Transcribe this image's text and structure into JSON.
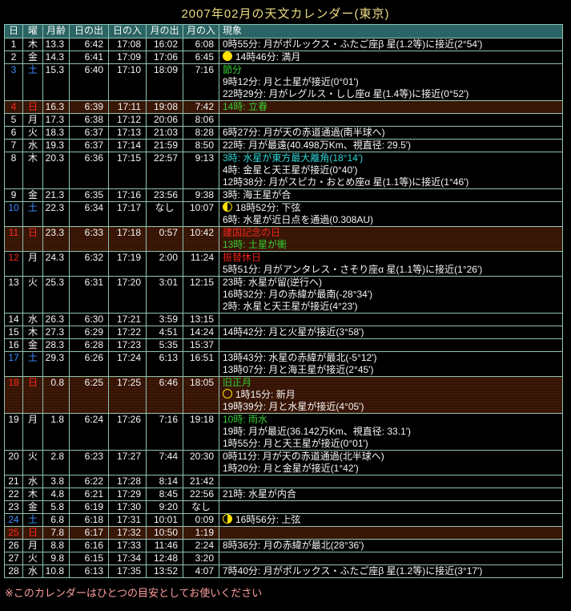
{
  "page": {
    "title": "2007年02月の天文カレンダー(東京)",
    "footer_note": "※このカレンダーはひとつの目安としてお使いください"
  },
  "colors": {
    "background": "#000000",
    "title_text": "#EDDC82",
    "footer_text": "#FF9E9E",
    "grid_border": "#8FC2B2",
    "header_bg": "#2E6666",
    "body_text": "#F5F5F5",
    "saturday_text": "#3E8DFF",
    "sunday_holiday_text": "#FF2A1F",
    "sunday_row_bg": "#3A1505",
    "seasonal_event_green": "#35CC35",
    "mercury_event_cyan": "#2FD5D5",
    "holiday_event_red": "#F02218",
    "moon_icon_yellow": "#FFE000"
  },
  "table": {
    "columns": [
      "日",
      "曜",
      "月齢",
      "日の出",
      "日の入",
      "月の出",
      "月の入",
      "現象"
    ],
    "rows": [
      {
        "day": "1",
        "weekday": "木",
        "moon_age": "13.3",
        "sunrise": "6:42",
        "sunset": "17:08",
        "moonrise": "16:02",
        "moonset": "6:08",
        "num_color": null,
        "wd_color": null,
        "row_bg": null,
        "events": [
          {
            "text": "0時55分: 月がポルックス・ふたご座β 星(1.2等)に接近(2°54')",
            "color": "white",
            "icon": null
          }
        ]
      },
      {
        "day": "2",
        "weekday": "金",
        "moon_age": "14.3",
        "sunrise": "6:41",
        "sunset": "17:09",
        "moonrise": "17:06",
        "moonset": "6:45",
        "num_color": null,
        "wd_color": null,
        "row_bg": null,
        "events": [
          {
            "text": "14時46分: 満月",
            "color": "white",
            "icon": "full-moon"
          }
        ]
      },
      {
        "day": "3",
        "weekday": "土",
        "moon_age": "15.3",
        "sunrise": "6:40",
        "sunset": "17:10",
        "moonrise": "18:09",
        "moonset": "7:16",
        "num_color": "blue",
        "wd_color": "blue",
        "row_bg": null,
        "events": [
          {
            "text": "節分",
            "color": "green",
            "icon": null
          },
          {
            "text": "9時12分: 月と土星が接近(0°01')",
            "color": "white",
            "icon": null
          },
          {
            "text": "22時29分: 月がレグルス・しし座α 星(1.4等)に接近(0°52')",
            "color": "white",
            "icon": null
          }
        ]
      },
      {
        "day": "4",
        "weekday": "日",
        "moon_age": "16.3",
        "sunrise": "6:39",
        "sunset": "17:11",
        "moonrise": "19:08",
        "moonset": "7:42",
        "num_color": "red",
        "wd_color": "red",
        "row_bg": "maroon",
        "events": [
          {
            "text": "14時: 立春",
            "color": "green",
            "icon": null
          }
        ]
      },
      {
        "day": "5",
        "weekday": "月",
        "moon_age": "17.3",
        "sunrise": "6:38",
        "sunset": "17:12",
        "moonrise": "20:06",
        "moonset": "8:06",
        "num_color": null,
        "wd_color": null,
        "row_bg": null,
        "events": []
      },
      {
        "day": "6",
        "weekday": "火",
        "moon_age": "18.3",
        "sunrise": "6:37",
        "sunset": "17:13",
        "moonrise": "21:03",
        "moonset": "8:28",
        "num_color": null,
        "wd_color": null,
        "row_bg": null,
        "events": [
          {
            "text": "6時27分: 月が天の赤道通過(南半球へ)",
            "color": "white",
            "icon": null
          }
        ]
      },
      {
        "day": "7",
        "weekday": "水",
        "moon_age": "19.3",
        "sunrise": "6:37",
        "sunset": "17:14",
        "moonrise": "21:59",
        "moonset": "8:50",
        "num_color": null,
        "wd_color": null,
        "row_bg": null,
        "events": [
          {
            "text": "22時: 月が最遠(40.498万Km、視直径: 29.5')",
            "color": "white",
            "icon": null
          }
        ]
      },
      {
        "day": "8",
        "weekday": "木",
        "moon_age": "20.3",
        "sunrise": "6:36",
        "sunset": "17:15",
        "moonrise": "22:57",
        "moonset": "9:13",
        "num_color": null,
        "wd_color": null,
        "row_bg": null,
        "events": [
          {
            "text": "3時: 水星が東方最大離角(18°14')",
            "color": "cyan",
            "icon": null
          },
          {
            "text": "4時: 金星と天王星が接近(0°40')",
            "color": "white",
            "icon": null
          },
          {
            "text": "12時38分: 月がスピカ・おとめ座α 星(1.1等)に接近(1°46')",
            "color": "white",
            "icon": null
          }
        ]
      },
      {
        "day": "9",
        "weekday": "金",
        "moon_age": "21.3",
        "sunrise": "6:35",
        "sunset": "17:16",
        "moonrise": "23:56",
        "moonset": "9:38",
        "num_color": null,
        "wd_color": null,
        "row_bg": null,
        "events": [
          {
            "text": "3時: 海王星が合",
            "color": "white",
            "icon": null
          }
        ]
      },
      {
        "day": "10",
        "weekday": "土",
        "moon_age": "22.3",
        "sunrise": "6:34",
        "sunset": "17:17",
        "moonrise": "なし",
        "moonset": "10:07",
        "num_color": "blue",
        "wd_color": "blue",
        "row_bg": null,
        "events": [
          {
            "text": "18時52分: 下弦",
            "color": "white",
            "icon": "last-quarter"
          },
          {
            "text": "6時: 水星が近日点を通過(0.308AU)",
            "color": "white",
            "icon": null
          }
        ]
      },
      {
        "day": "11",
        "weekday": "日",
        "moon_age": "23.3",
        "sunrise": "6:33",
        "sunset": "17:18",
        "moonrise": "0:57",
        "moonset": "10:42",
        "num_color": "red",
        "wd_color": "red",
        "row_bg": "maroon",
        "events": [
          {
            "text": "建国記念の日",
            "color": "red",
            "icon": null
          },
          {
            "text": "13時: 土星が衝",
            "color": "green",
            "icon": null
          }
        ]
      },
      {
        "day": "12",
        "weekday": "月",
        "moon_age": "24.3",
        "sunrise": "6:32",
        "sunset": "17:19",
        "moonrise": "2:00",
        "moonset": "11:24",
        "num_color": "red",
        "wd_color": null,
        "row_bg": null,
        "events": [
          {
            "text": "振替休日",
            "color": "red",
            "icon": null
          },
          {
            "text": "5時51分: 月がアンタレス・さそり座α 星(1.1等)に接近(1°26')",
            "color": "white",
            "icon": null
          }
        ]
      },
      {
        "day": "13",
        "weekday": "火",
        "moon_age": "25.3",
        "sunrise": "6:31",
        "sunset": "17:20",
        "moonrise": "3:01",
        "moonset": "12:15",
        "num_color": null,
        "wd_color": null,
        "row_bg": null,
        "events": [
          {
            "text": "23時: 水星が留(逆行へ)",
            "color": "white",
            "icon": null
          },
          {
            "text": "16時32分: 月の赤緯が最南(-28°34')",
            "color": "white",
            "icon": null
          },
          {
            "text": "2時: 水星と天王星が接近(4°23')",
            "color": "white",
            "icon": null
          }
        ]
      },
      {
        "day": "14",
        "weekday": "水",
        "moon_age": "26.3",
        "sunrise": "6:30",
        "sunset": "17:21",
        "moonrise": "3:59",
        "moonset": "13:15",
        "num_color": null,
        "wd_color": null,
        "row_bg": null,
        "events": []
      },
      {
        "day": "15",
        "weekday": "木",
        "moon_age": "27.3",
        "sunrise": "6:29",
        "sunset": "17:22",
        "moonrise": "4:51",
        "moonset": "14:24",
        "num_color": null,
        "wd_color": null,
        "row_bg": null,
        "events": [
          {
            "text": "14時42分: 月と火星が接近(3°58')",
            "color": "white",
            "icon": null
          }
        ]
      },
      {
        "day": "16",
        "weekday": "金",
        "moon_age": "28.3",
        "sunrise": "6:28",
        "sunset": "17:23",
        "moonrise": "5:35",
        "moonset": "15:37",
        "num_color": null,
        "wd_color": null,
        "row_bg": null,
        "events": []
      },
      {
        "day": "17",
        "weekday": "土",
        "moon_age": "29.3",
        "sunrise": "6:26",
        "sunset": "17:24",
        "moonrise": "6:13",
        "moonset": "16:51",
        "num_color": "blue",
        "wd_color": "blue",
        "row_bg": null,
        "events": [
          {
            "text": "13時43分: 水星の赤緯が最北(-5°12')",
            "color": "white",
            "icon": null
          },
          {
            "text": "13時07分: 月と海王星が接近(2°45')",
            "color": "white",
            "icon": null
          }
        ]
      },
      {
        "day": "18",
        "weekday": "日",
        "moon_age": "0.8",
        "sunrise": "6:25",
        "sunset": "17:25",
        "moonrise": "6:46",
        "moonset": "18:05",
        "num_color": "red",
        "wd_color": "red",
        "row_bg": "maroon",
        "events": [
          {
            "text": "旧正月",
            "color": "green",
            "icon": null
          },
          {
            "text": "1時15分: 新月",
            "color": "white",
            "icon": "new-moon"
          },
          {
            "text": "19時39分: 月と水星が接近(4°05')",
            "color": "white",
            "icon": null
          }
        ]
      },
      {
        "day": "19",
        "weekday": "月",
        "moon_age": "1.8",
        "sunrise": "6:24",
        "sunset": "17:26",
        "moonrise": "7:16",
        "moonset": "19:18",
        "num_color": null,
        "wd_color": null,
        "row_bg": null,
        "events": [
          {
            "text": "10時: 雨水",
            "color": "green",
            "icon": null
          },
          {
            "text": "19時: 月が最近(36.142万Km、視直径: 33.1')",
            "color": "white",
            "icon": null
          },
          {
            "text": "1時55分: 月と天王星が接近(0°01')",
            "color": "white",
            "icon": null
          }
        ]
      },
      {
        "day": "20",
        "weekday": "火",
        "moon_age": "2.8",
        "sunrise": "6:23",
        "sunset": "17:27",
        "moonrise": "7:44",
        "moonset": "20:30",
        "num_color": null,
        "wd_color": null,
        "row_bg": null,
        "events": [
          {
            "text": "0時11分: 月が天の赤道通過(北半球へ)",
            "color": "white",
            "icon": null
          },
          {
            "text": "1時20分: 月と金星が接近(1°42')",
            "color": "white",
            "icon": null
          }
        ]
      },
      {
        "day": "21",
        "weekday": "水",
        "moon_age": "3.8",
        "sunrise": "6:22",
        "sunset": "17:28",
        "moonrise": "8:14",
        "moonset": "21:42",
        "num_color": null,
        "wd_color": null,
        "row_bg": null,
        "events": []
      },
      {
        "day": "22",
        "weekday": "木",
        "moon_age": "4.8",
        "sunrise": "6:21",
        "sunset": "17:29",
        "moonrise": "8:45",
        "moonset": "22:56",
        "num_color": null,
        "wd_color": null,
        "row_bg": null,
        "events": [
          {
            "text": "21時: 水星が内合",
            "color": "white",
            "icon": null
          }
        ]
      },
      {
        "day": "23",
        "weekday": "金",
        "moon_age": "5.8",
        "sunrise": "6:19",
        "sunset": "17:30",
        "moonrise": "9:20",
        "moonset": "なし",
        "num_color": null,
        "wd_color": null,
        "row_bg": null,
        "events": []
      },
      {
        "day": "24",
        "weekday": "土",
        "moon_age": "6.8",
        "sunrise": "6:18",
        "sunset": "17:31",
        "moonrise": "10:01",
        "moonset": "0:09",
        "num_color": "blue",
        "wd_color": "blue",
        "row_bg": null,
        "events": [
          {
            "text": "16時56分: 上弦",
            "color": "white",
            "icon": "first-quarter"
          }
        ]
      },
      {
        "day": "25",
        "weekday": "日",
        "moon_age": "7.8",
        "sunrise": "6:17",
        "sunset": "17:32",
        "moonrise": "10:50",
        "moonset": "1:19",
        "num_color": "red",
        "wd_color": "red",
        "row_bg": "maroon",
        "events": []
      },
      {
        "day": "26",
        "weekday": "月",
        "moon_age": "8.8",
        "sunrise": "6:16",
        "sunset": "17:33",
        "moonrise": "11:46",
        "moonset": "2:24",
        "num_color": null,
        "wd_color": null,
        "row_bg": null,
        "events": [
          {
            "text": "8時36分: 月の赤緯が最北(28°36')",
            "color": "white",
            "icon": null
          }
        ]
      },
      {
        "day": "27",
        "weekday": "火",
        "moon_age": "9.8",
        "sunrise": "6:15",
        "sunset": "17:34",
        "moonrise": "12:48",
        "moonset": "3:20",
        "num_color": null,
        "wd_color": null,
        "row_bg": null,
        "events": []
      },
      {
        "day": "28",
        "weekday": "水",
        "moon_age": "10.8",
        "sunrise": "6:13",
        "sunset": "17:35",
        "moonrise": "13:52",
        "moonset": "4:07",
        "num_color": null,
        "wd_color": null,
        "row_bg": null,
        "events": [
          {
            "text": "7時40分: 月がポルックス・ふたご座β 星(1.2等)に接近(3°17')",
            "color": "white",
            "icon": null
          }
        ]
      }
    ]
  }
}
